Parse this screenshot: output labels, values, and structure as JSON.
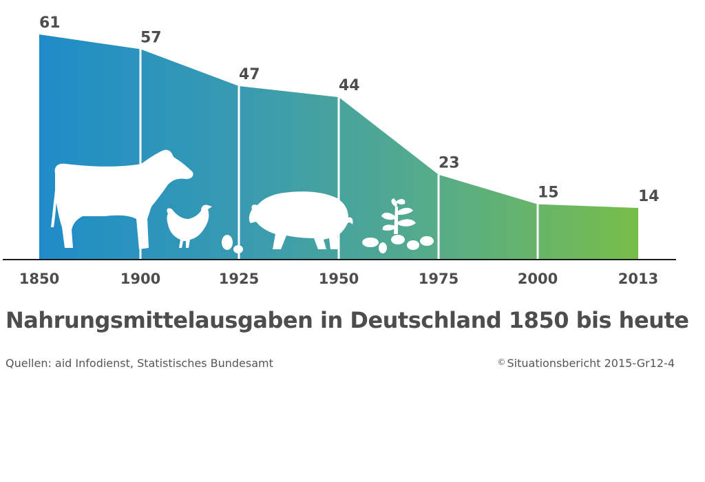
{
  "chart_data": {
    "type": "area",
    "title": "Nahrungsmittelausgaben in Deutschland 1850 bis heute",
    "x": [
      1850,
      1900,
      1925,
      1950,
      1975,
      2000,
      2013
    ],
    "values": [
      61,
      57,
      47,
      44,
      23,
      15,
      14
    ],
    "tick_labels": [
      "1850",
      "1900",
      "1925",
      "1950",
      "1975",
      "2000",
      "2013"
    ],
    "value_labels": [
      "61",
      "57",
      "47",
      "44",
      "23",
      "15",
      "14"
    ],
    "ylim": [
      0,
      61
    ],
    "grid": false,
    "legend": "none",
    "gradient_colors": [
      "#1e8cc8",
      "#3a9bb0",
      "#55ab8a",
      "#78bd4a"
    ],
    "icons": [
      "cow-icon",
      "chicken-icon",
      "egg-icon",
      "pig-icon",
      "potato-plant-icon"
    ]
  },
  "footer": {
    "sources": "Quellen: aid Infodienst, Statistisches Bundesamt",
    "copyright_symbol": "©",
    "credit": "Situationsbericht 2015-Gr12-4"
  }
}
